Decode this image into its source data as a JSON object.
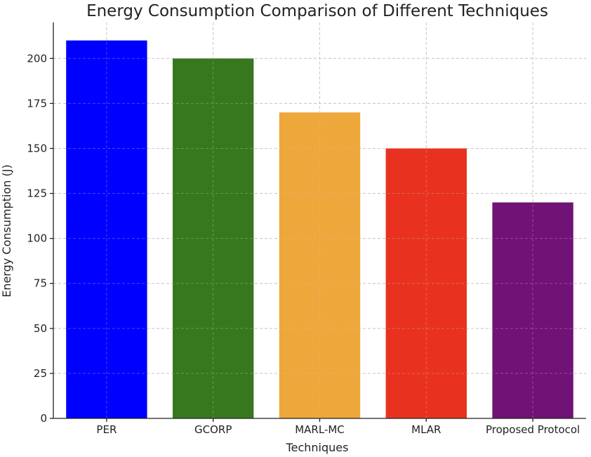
{
  "chart_data": {
    "type": "bar",
    "title": "Energy Consumption Comparison of Different Techniques",
    "xlabel": "Techniques",
    "ylabel": "Energy Consumption (J)",
    "categories": [
      "PER",
      "GCORP",
      "MARL-MC",
      "MLAR",
      "Proposed Protocol"
    ],
    "values": [
      210,
      200,
      170,
      150,
      120
    ],
    "colors": [
      "#0000ff",
      "#37781e",
      "#eea73a",
      "#e8321f",
      "#701276"
    ],
    "ylim": [
      0,
      220
    ],
    "yticks": [
      0,
      25,
      50,
      75,
      100,
      125,
      150,
      175,
      200
    ],
    "grid": true
  }
}
